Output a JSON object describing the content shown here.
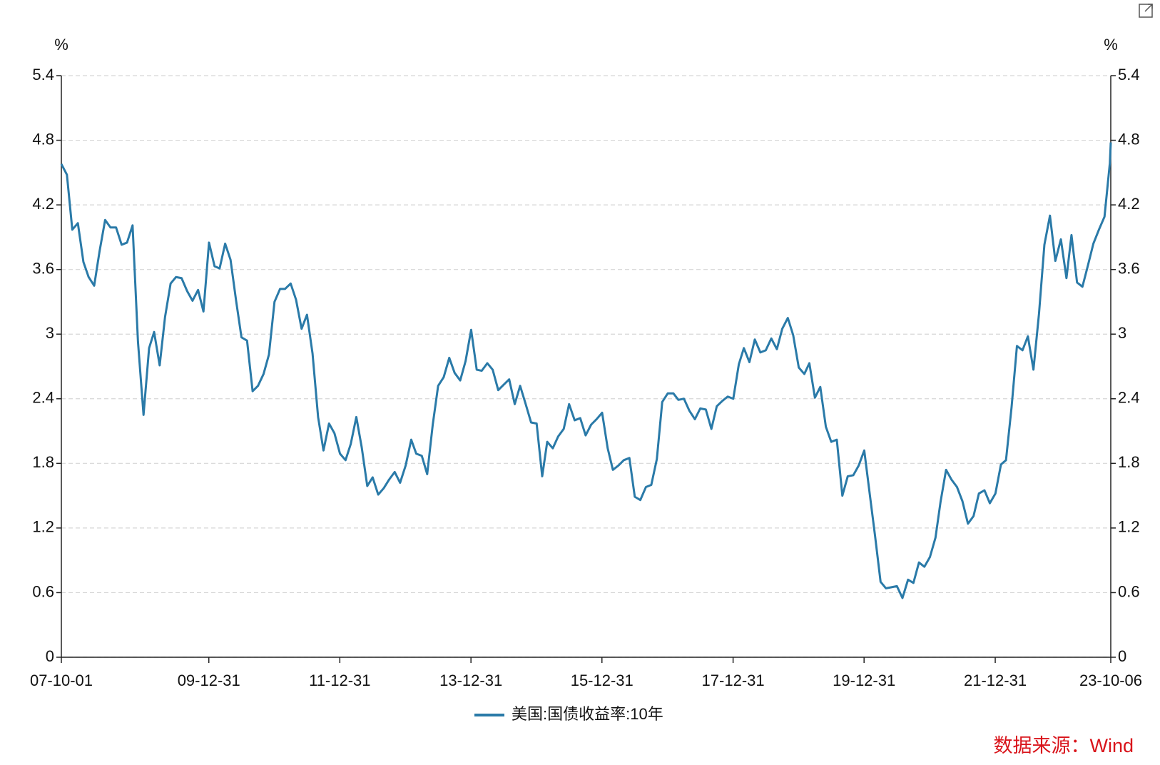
{
  "chart_data": {
    "type": "line",
    "y_label": "%",
    "y2_label": "%",
    "x": [
      "07-10-01",
      "07-11-01",
      "07-12-01",
      "08-01-01",
      "08-02-01",
      "08-03-01",
      "08-04-01",
      "08-05-01",
      "08-06-01",
      "08-07-01",
      "08-08-01",
      "08-09-01",
      "08-10-01",
      "08-11-01",
      "08-12-01",
      "09-01-01",
      "09-02-01",
      "09-03-01",
      "09-04-01",
      "09-05-01",
      "09-06-01",
      "09-07-01",
      "09-08-01",
      "09-09-01",
      "09-10-01",
      "09-11-01",
      "09-12-01",
      "10-01-01",
      "10-02-01",
      "10-03-01",
      "10-04-01",
      "10-05-01",
      "10-06-01",
      "10-07-01",
      "10-08-01",
      "10-09-01",
      "10-10-01",
      "10-11-01",
      "10-12-01",
      "11-01-01",
      "11-02-01",
      "11-03-01",
      "11-04-01",
      "11-05-01",
      "11-06-01",
      "11-07-01",
      "11-08-01",
      "11-09-01",
      "11-10-01",
      "11-11-01",
      "11-12-01",
      "12-01-01",
      "12-02-01",
      "12-03-01",
      "12-04-01",
      "12-05-01",
      "12-06-01",
      "12-07-01",
      "12-08-01",
      "12-09-01",
      "12-10-01",
      "12-11-01",
      "12-12-01",
      "13-01-01",
      "13-02-01",
      "13-03-01",
      "13-04-01",
      "13-05-01",
      "13-06-01",
      "13-07-01",
      "13-08-01",
      "13-09-01",
      "13-10-01",
      "13-11-01",
      "13-12-01",
      "14-01-01",
      "14-02-01",
      "14-03-01",
      "14-04-01",
      "14-05-01",
      "14-06-01",
      "14-07-01",
      "14-08-01",
      "14-09-01",
      "14-10-01",
      "14-11-01",
      "14-12-01",
      "15-01-01",
      "15-02-01",
      "15-03-01",
      "15-04-01",
      "15-05-01",
      "15-06-01",
      "15-07-01",
      "15-08-01",
      "15-09-01",
      "15-10-01",
      "15-11-01",
      "15-12-01",
      "16-01-01",
      "16-02-01",
      "16-03-01",
      "16-04-01",
      "16-05-01",
      "16-06-01",
      "16-07-01",
      "16-08-01",
      "16-09-01",
      "16-10-01",
      "16-11-01",
      "16-12-01",
      "17-01-01",
      "17-02-01",
      "17-03-01",
      "17-04-01",
      "17-05-01",
      "17-06-01",
      "17-07-01",
      "17-08-01",
      "17-09-01",
      "17-10-01",
      "17-11-01",
      "17-12-01",
      "18-01-01",
      "18-02-01",
      "18-03-01",
      "18-04-01",
      "18-05-01",
      "18-06-01",
      "18-07-01",
      "18-08-01",
      "18-09-01",
      "18-10-01",
      "18-11-01",
      "18-12-01",
      "19-01-01",
      "19-02-01",
      "19-03-01",
      "19-04-01",
      "19-05-01",
      "19-06-01",
      "19-07-01",
      "19-08-01",
      "19-09-01",
      "19-10-01",
      "19-11-01",
      "19-12-01",
      "20-01-01",
      "20-02-01",
      "20-03-01",
      "20-04-01",
      "20-05-01",
      "20-06-01",
      "20-07-01",
      "20-08-01",
      "20-09-01",
      "20-10-01",
      "20-11-01",
      "20-12-01",
      "21-01-01",
      "21-02-01",
      "21-03-01",
      "21-04-01",
      "21-05-01",
      "21-06-01",
      "21-07-01",
      "21-08-01",
      "21-09-01",
      "21-10-01",
      "21-11-01",
      "21-12-01",
      "22-01-01",
      "22-02-01",
      "22-03-01",
      "22-04-01",
      "22-05-01",
      "22-06-01",
      "22-07-01",
      "22-08-01",
      "22-09-01",
      "22-10-01",
      "22-11-01",
      "22-12-01",
      "23-01-01",
      "23-02-01",
      "23-03-01",
      "23-04-01",
      "23-05-01",
      "23-06-01",
      "23-07-01",
      "23-08-01",
      "23-09-01",
      "23-10-01",
      "23-10-06"
    ],
    "series": [
      {
        "name": "美国:国债收益率:10年",
        "color": "#2a7aa8",
        "values": [
          4.58,
          4.48,
          3.97,
          4.03,
          3.67,
          3.53,
          3.45,
          3.77,
          4.06,
          3.99,
          3.99,
          3.83,
          3.85,
          4.01,
          2.93,
          2.25,
          2.87,
          3.02,
          2.71,
          3.16,
          3.47,
          3.53,
          3.52,
          3.4,
          3.31,
          3.41,
          3.21,
          3.85,
          3.63,
          3.61,
          3.84,
          3.69,
          3.31,
          2.97,
          2.94,
          2.47,
          2.52,
          2.63,
          2.81,
          3.3,
          3.42,
          3.42,
          3.47,
          3.32,
          3.05,
          3.18,
          2.82,
          2.23,
          1.92,
          2.17,
          2.08,
          1.89,
          1.83,
          1.98,
          2.23,
          1.95,
          1.59,
          1.67,
          1.51,
          1.57,
          1.65,
          1.72,
          1.62,
          1.78,
          2.02,
          1.89,
          1.87,
          1.7,
          2.16,
          2.52,
          2.6,
          2.78,
          2.64,
          2.57,
          2.75,
          3.04,
          2.67,
          2.66,
          2.73,
          2.67,
          2.48,
          2.53,
          2.58,
          2.35,
          2.52,
          2.35,
          2.18,
          2.17,
          1.68,
          2.0,
          1.94,
          2.05,
          2.12,
          2.35,
          2.2,
          2.22,
          2.06,
          2.16,
          2.21,
          2.27,
          1.94,
          1.74,
          1.78,
          1.83,
          1.85,
          1.49,
          1.46,
          1.58,
          1.6,
          1.84,
          2.37,
          2.45,
          2.45,
          2.39,
          2.4,
          2.29,
          2.21,
          2.31,
          2.3,
          2.12,
          2.33,
          2.38,
          2.42,
          2.4,
          2.72,
          2.87,
          2.74,
          2.95,
          2.83,
          2.85,
          2.96,
          2.86,
          3.05,
          3.15,
          2.99,
          2.69,
          2.63,
          2.73,
          2.41,
          2.51,
          2.14,
          2.0,
          2.02,
          1.5,
          1.68,
          1.69,
          1.78,
          1.92,
          1.51,
          1.13,
          0.7,
          0.64,
          0.65,
          0.66,
          0.55,
          0.72,
          0.69,
          0.88,
          0.84,
          0.93,
          1.11,
          1.44,
          1.74,
          1.65,
          1.58,
          1.45,
          1.24,
          1.31,
          1.52,
          1.55,
          1.43,
          1.52,
          1.79,
          1.83,
          2.32,
          2.89,
          2.85,
          2.98,
          2.67,
          3.19,
          3.83,
          4.1,
          3.68,
          3.88,
          3.52,
          3.92,
          3.48,
          3.44,
          3.64,
          3.84,
          3.97,
          4.09,
          4.59,
          4.78
        ]
      }
    ],
    "xlim": [
      "07-10-01",
      "23-10-06"
    ],
    "xticks": [
      "07-10-01",
      "09-12-31",
      "11-12-31",
      "13-12-31",
      "15-12-31",
      "17-12-31",
      "19-12-31",
      "21-12-31",
      "23-10-06"
    ],
    "ylim": [
      0,
      5.4
    ],
    "yticks": [
      0,
      0.6,
      1.2,
      1.8,
      2.4,
      3,
      3.6,
      4.2,
      4.8,
      5.4
    ],
    "y2lim": [
      0,
      5.4
    ],
    "y2ticks": [
      0,
      0.6,
      1.2,
      1.8,
      2.4,
      3,
      3.6,
      4.2,
      4.8,
      5.4
    ],
    "grid": true,
    "legend": "bottom",
    "source": "数据来源：Wind",
    "source_color": "#d9141b"
  }
}
